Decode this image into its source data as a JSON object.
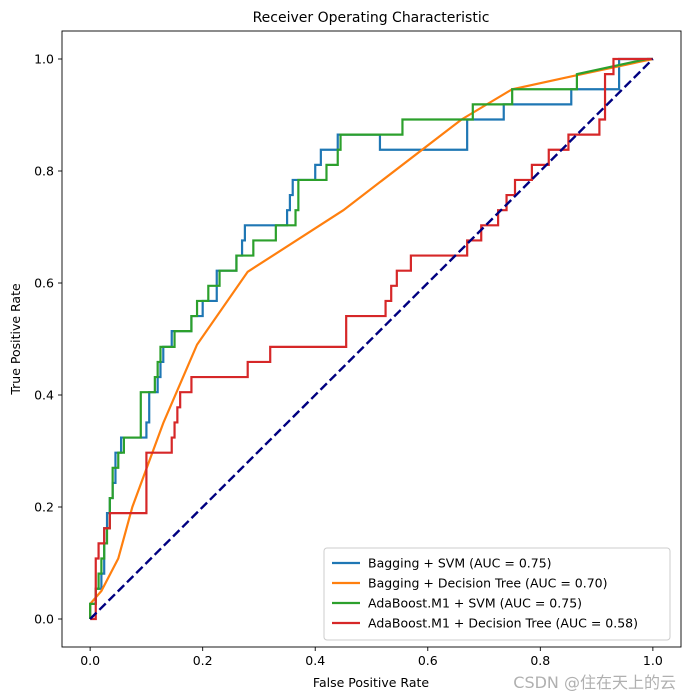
{
  "chart_data": {
    "type": "line",
    "title": "Receiver Operating Characteristic",
    "xlabel": "False Positive Rate",
    "ylabel": "True Positive Rate",
    "xlim": [
      -0.05,
      1.05
    ],
    "ylim": [
      -0.05,
      1.05
    ],
    "xticks": [
      0.0,
      0.2,
      0.4,
      0.6,
      0.8,
      1.0
    ],
    "yticks": [
      0.0,
      0.2,
      0.4,
      0.6,
      0.8,
      1.0
    ],
    "xtick_labels": [
      "0.0",
      "0.2",
      "0.4",
      "0.6",
      "0.8",
      "1.0"
    ],
    "ytick_labels": [
      "0.0",
      "0.2",
      "0.4",
      "0.6",
      "0.8",
      "1.0"
    ],
    "legend_position": "bottom-right",
    "series": [
      {
        "name": "Bagging + SVM (AUC = 0.75)",
        "color": "#1f77b4",
        "x": [
          0.0,
          0.0,
          0.01,
          0.01,
          0.02,
          0.02,
          0.025,
          0.025,
          0.03,
          0.03,
          0.035,
          0.035,
          0.04,
          0.04,
          0.045,
          0.045,
          0.055,
          0.055,
          0.1,
          0.1,
          0.105,
          0.105,
          0.12,
          0.12,
          0.125,
          0.125,
          0.13,
          0.13,
          0.145,
          0.145,
          0.18,
          0.18,
          0.2,
          0.2,
          0.225,
          0.225,
          0.26,
          0.26,
          0.27,
          0.27,
          0.275,
          0.275,
          0.35,
          0.35,
          0.355,
          0.355,
          0.36,
          0.36,
          0.4,
          0.4,
          0.41,
          0.41,
          0.44,
          0.44,
          0.515,
          0.515,
          0.67,
          0.67,
          0.735,
          0.735,
          0.855,
          0.855,
          0.94,
          0.94,
          1.0
        ],
        "y": [
          0.0,
          0.027,
          0.027,
          0.054,
          0.054,
          0.081,
          0.081,
          0.162,
          0.162,
          0.189,
          0.189,
          0.216,
          0.216,
          0.243,
          0.243,
          0.297,
          0.297,
          0.324,
          0.324,
          0.351,
          0.351,
          0.405,
          0.405,
          0.432,
          0.432,
          0.459,
          0.459,
          0.486,
          0.486,
          0.514,
          0.514,
          0.541,
          0.541,
          0.568,
          0.568,
          0.622,
          0.622,
          0.649,
          0.649,
          0.676,
          0.676,
          0.703,
          0.703,
          0.73,
          0.73,
          0.757,
          0.757,
          0.784,
          0.784,
          0.811,
          0.811,
          0.838,
          0.838,
          0.865,
          0.865,
          0.838,
          0.838,
          0.892,
          0.892,
          0.919,
          0.919,
          0.946,
          0.946,
          1.0,
          1.0
        ]
      },
      {
        "name": "Bagging + Decision Tree (AUC = 0.70)",
        "color": "#ff7f0e",
        "x": [
          0.0,
          0.0,
          0.02,
          0.05,
          0.075,
          0.13,
          0.19,
          0.28,
          0.45,
          0.66,
          0.75,
          0.86,
          1.0
        ],
        "y": [
          0.0,
          0.027,
          0.05,
          0.108,
          0.2,
          0.35,
          0.49,
          0.62,
          0.73,
          0.892,
          0.946,
          0.97,
          1.0
        ]
      },
      {
        "name": "AdaBoost.M1 + SVM (AUC = 0.75)",
        "color": "#2ca02c",
        "x": [
          0.0,
          0.0,
          0.01,
          0.01,
          0.015,
          0.015,
          0.02,
          0.02,
          0.025,
          0.025,
          0.03,
          0.03,
          0.035,
          0.035,
          0.04,
          0.04,
          0.05,
          0.05,
          0.06,
          0.06,
          0.09,
          0.09,
          0.115,
          0.115,
          0.12,
          0.12,
          0.125,
          0.125,
          0.15,
          0.15,
          0.18,
          0.18,
          0.19,
          0.19,
          0.21,
          0.21,
          0.23,
          0.23,
          0.26,
          0.26,
          0.285,
          0.285,
          0.29,
          0.29,
          0.33,
          0.33,
          0.365,
          0.365,
          0.37,
          0.37,
          0.42,
          0.42,
          0.44,
          0.44,
          0.445,
          0.445,
          0.555,
          0.555,
          0.68,
          0.68,
          0.75,
          0.75,
          0.865,
          0.865,
          0.99,
          1.0
        ],
        "y": [
          0.0,
          0.027,
          0.027,
          0.054,
          0.054,
          0.081,
          0.081,
          0.108,
          0.108,
          0.135,
          0.135,
          0.162,
          0.162,
          0.216,
          0.216,
          0.27,
          0.27,
          0.297,
          0.297,
          0.324,
          0.324,
          0.405,
          0.405,
          0.432,
          0.432,
          0.459,
          0.459,
          0.486,
          0.486,
          0.514,
          0.514,
          0.541,
          0.541,
          0.568,
          0.568,
          0.595,
          0.595,
          0.622,
          0.622,
          0.649,
          0.649,
          0.649,
          0.649,
          0.676,
          0.676,
          0.703,
          0.703,
          0.73,
          0.73,
          0.784,
          0.784,
          0.811,
          0.811,
          0.838,
          0.838,
          0.865,
          0.865,
          0.892,
          0.892,
          0.919,
          0.919,
          0.946,
          0.946,
          0.973,
          1.0,
          1.0
        ]
      },
      {
        "name": "AdaBoost.M1 + Decision Tree (AUC = 0.58)",
        "color": "#d62728",
        "x": [
          0.0,
          0.01,
          0.01,
          0.015,
          0.015,
          0.025,
          0.025,
          0.035,
          0.035,
          0.04,
          0.04,
          0.1,
          0.1,
          0.145,
          0.145,
          0.15,
          0.15,
          0.155,
          0.155,
          0.16,
          0.16,
          0.18,
          0.18,
          0.28,
          0.28,
          0.32,
          0.32,
          0.455,
          0.455,
          0.525,
          0.525,
          0.535,
          0.535,
          0.545,
          0.545,
          0.57,
          0.57,
          0.67,
          0.67,
          0.695,
          0.695,
          0.725,
          0.725,
          0.74,
          0.74,
          0.755,
          0.755,
          0.785,
          0.785,
          0.815,
          0.815,
          0.85,
          0.85,
          0.905,
          0.905,
          0.915,
          0.915,
          0.93,
          0.93,
          1.0
        ],
        "y": [
          0.0,
          0.0,
          0.108,
          0.108,
          0.135,
          0.135,
          0.162,
          0.162,
          0.189,
          0.189,
          0.189,
          0.189,
          0.297,
          0.297,
          0.324,
          0.324,
          0.351,
          0.351,
          0.378,
          0.378,
          0.405,
          0.405,
          0.432,
          0.432,
          0.459,
          0.459,
          0.486,
          0.486,
          0.541,
          0.541,
          0.568,
          0.568,
          0.595,
          0.595,
          0.622,
          0.622,
          0.649,
          0.649,
          0.676,
          0.676,
          0.703,
          0.703,
          0.73,
          0.73,
          0.757,
          0.757,
          0.784,
          0.784,
          0.811,
          0.811,
          0.838,
          0.838,
          0.865,
          0.865,
          0.892,
          0.892,
          0.973,
          0.973,
          1.0,
          1.0
        ]
      }
    ],
    "diagonal": {
      "name": "chance-diagonal",
      "color": "#000080",
      "x": [
        0.0,
        1.0
      ],
      "y": [
        0.0,
        1.0
      ]
    }
  },
  "watermark": "CSDN @住在天上的云"
}
